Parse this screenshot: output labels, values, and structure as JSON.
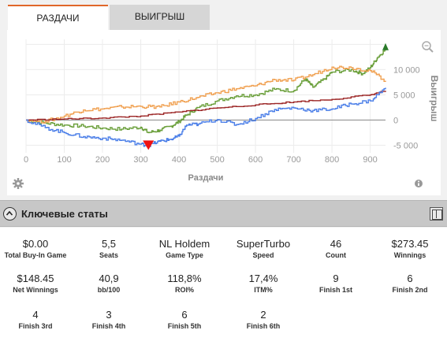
{
  "tabs": [
    {
      "label": "РАЗДАЧИ",
      "active": true
    },
    {
      "label": "ВЫИГРЫШ",
      "active": false
    }
  ],
  "chart_data": {
    "type": "line",
    "xlabel": "Раздачи",
    "ylabel": "Выигрыш",
    "xlim": [
      0,
      940
    ],
    "ylim": [
      -6500,
      16000
    ],
    "x_ticks": [
      "0",
      "100",
      "200",
      "300",
      "400",
      "500",
      "600",
      "700",
      "800",
      "900"
    ],
    "y_ticks": [
      "10 000",
      "5 000",
      "0",
      "-5 000"
    ],
    "series": [
      {
        "color": "#6a9f3a",
        "points": [
          [
            0,
            0
          ],
          [
            50,
            -600
          ],
          [
            100,
            -1000
          ],
          [
            150,
            -1200
          ],
          [
            200,
            -1600
          ],
          [
            250,
            -1800
          ],
          [
            300,
            -1400
          ],
          [
            320,
            -2500
          ],
          [
            350,
            -2000
          ],
          [
            380,
            -1200
          ],
          [
            400,
            -300
          ],
          [
            420,
            1000
          ],
          [
            450,
            2500
          ],
          [
            500,
            3800
          ],
          [
            550,
            4800
          ],
          [
            600,
            5000
          ],
          [
            650,
            6100
          ],
          [
            700,
            5800
          ],
          [
            730,
            8200
          ],
          [
            750,
            6500
          ],
          [
            780,
            8100
          ],
          [
            800,
            9500
          ],
          [
            850,
            10000
          ],
          [
            880,
            9200
          ],
          [
            900,
            10400
          ],
          [
            920,
            12500
          ],
          [
            940,
            14000
          ]
        ]
      },
      {
        "color": "#f0a050",
        "points": [
          [
            0,
            0
          ],
          [
            50,
            -300
          ],
          [
            100,
            800
          ],
          [
            150,
            2000
          ],
          [
            200,
            2200
          ],
          [
            250,
            2600
          ],
          [
            300,
            2700
          ],
          [
            350,
            2600
          ],
          [
            400,
            3600
          ],
          [
            450,
            4500
          ],
          [
            500,
            5400
          ],
          [
            550,
            6200
          ],
          [
            600,
            6800
          ],
          [
            650,
            8000
          ],
          [
            700,
            7900
          ],
          [
            750,
            9000
          ],
          [
            800,
            10500
          ],
          [
            850,
            10400
          ],
          [
            900,
            9800
          ],
          [
            940,
            7800
          ]
        ]
      },
      {
        "color": "#9b2424",
        "points": [
          [
            0,
            0
          ],
          [
            100,
            200
          ],
          [
            200,
            400
          ],
          [
            300,
            800
          ],
          [
            400,
            1600
          ],
          [
            500,
            2400
          ],
          [
            600,
            3000
          ],
          [
            700,
            3600
          ],
          [
            800,
            4100
          ],
          [
            900,
            5000
          ],
          [
            940,
            5800
          ]
        ]
      },
      {
        "color": "#4a7ee8",
        "points": [
          [
            0,
            0
          ],
          [
            50,
            -1500
          ],
          [
            100,
            -2500
          ],
          [
            150,
            -3300
          ],
          [
            200,
            -3600
          ],
          [
            250,
            -4000
          ],
          [
            300,
            -4800
          ],
          [
            320,
            -5000
          ],
          [
            350,
            -4200
          ],
          [
            380,
            -3800
          ],
          [
            400,
            -3200
          ],
          [
            420,
            -1000
          ],
          [
            450,
            -800
          ],
          [
            500,
            100
          ],
          [
            550,
            -900
          ],
          [
            600,
            300
          ],
          [
            650,
            2100
          ],
          [
            700,
            2400
          ],
          [
            750,
            1900
          ],
          [
            800,
            2200
          ],
          [
            850,
            3200
          ],
          [
            900,
            3800
          ],
          [
            940,
            6400
          ]
        ]
      }
    ],
    "markers": [
      {
        "type": "min",
        "x": 320,
        "y": -5000,
        "color": "#e11"
      },
      {
        "type": "max",
        "x": 940,
        "y": 14000,
        "color": "#2a7a2a"
      }
    ],
    "grid": true
  },
  "stats": {
    "title": "Ключевые статы",
    "items": [
      {
        "value": "$0.00",
        "label": "Total Buy-In Game"
      },
      {
        "value": "5,5",
        "label": "Seats"
      },
      {
        "value": "NL Holdem",
        "label": "Game Type"
      },
      {
        "value": "SuperTurbo",
        "label": "Speed"
      },
      {
        "value": "46",
        "label": "Count"
      },
      {
        "value": "$273.45",
        "label": "Winnings"
      },
      {
        "value": "$148.45",
        "label": "Net Winnings"
      },
      {
        "value": "40,9",
        "label": "bb/100"
      },
      {
        "value": "118,8%",
        "label": "ROI%"
      },
      {
        "value": "17,4%",
        "label": "ITM%"
      },
      {
        "value": "9",
        "label": "Finish 1st"
      },
      {
        "value": "6",
        "label": "Finish 2nd"
      },
      {
        "value": "4",
        "label": "Finish 3rd"
      },
      {
        "value": "3",
        "label": "Finish 4th"
      },
      {
        "value": "6",
        "label": "Finish 5th"
      },
      {
        "value": "2",
        "label": "Finish 6th"
      }
    ]
  }
}
